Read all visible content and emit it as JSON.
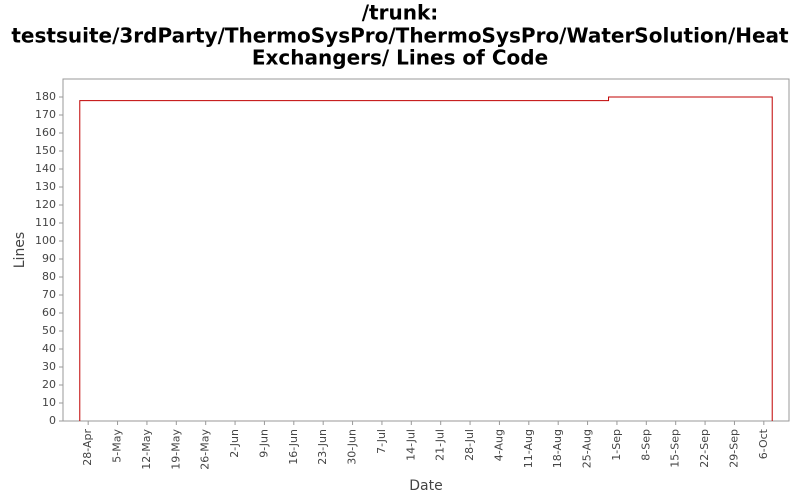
{
  "chart_data": {
    "type": "step",
    "title": [
      "/trunk:",
      "testsuite/3rdParty/ThermoSysPro/ThermoSysPro/WaterSolution/Heat",
      "Exchangers/ Lines of Code"
    ],
    "x_label": "Date",
    "y_label": "Lines",
    "series": [
      {
        "name": "Lines of Code",
        "color": "#c00000",
        "x": [
          -2,
          124,
          163
        ],
        "values": [
          178,
          180,
          180
        ]
      }
    ],
    "xlim": [
      -6,
      167
    ],
    "xticks": [
      {
        "value": 0,
        "label": "28-Apr"
      },
      {
        "value": 7,
        "label": "5-May"
      },
      {
        "value": 14,
        "label": "12-May"
      },
      {
        "value": 21,
        "label": "19-May"
      },
      {
        "value": 28,
        "label": "26-May"
      },
      {
        "value": 35,
        "label": "2-Jun"
      },
      {
        "value": 42,
        "label": "9-Jun"
      },
      {
        "value": 49,
        "label": "16-Jun"
      },
      {
        "value": 56,
        "label": "23-Jun"
      },
      {
        "value": 63,
        "label": "30-Jun"
      },
      {
        "value": 70,
        "label": "7-Jul"
      },
      {
        "value": 77,
        "label": "14-Jul"
      },
      {
        "value": 84,
        "label": "21-Jul"
      },
      {
        "value": 91,
        "label": "28-Jul"
      },
      {
        "value": 98,
        "label": "4-Aug"
      },
      {
        "value": 105,
        "label": "11-Aug"
      },
      {
        "value": 112,
        "label": "18-Aug"
      },
      {
        "value": 119,
        "label": "25-Aug"
      },
      {
        "value": 126,
        "label": "1-Sep"
      },
      {
        "value": 133,
        "label": "8-Sep"
      },
      {
        "value": 140,
        "label": "15-Sep"
      },
      {
        "value": 147,
        "label": "22-Sep"
      },
      {
        "value": 154,
        "label": "29-Sep"
      },
      {
        "value": 161,
        "label": "6-Oct"
      }
    ],
    "ylim": [
      0,
      190
    ],
    "yticks": [
      0,
      10,
      20,
      30,
      40,
      50,
      60,
      70,
      80,
      90,
      100,
      110,
      120,
      130,
      140,
      150,
      160,
      170,
      180
    ],
    "grid": false
  }
}
